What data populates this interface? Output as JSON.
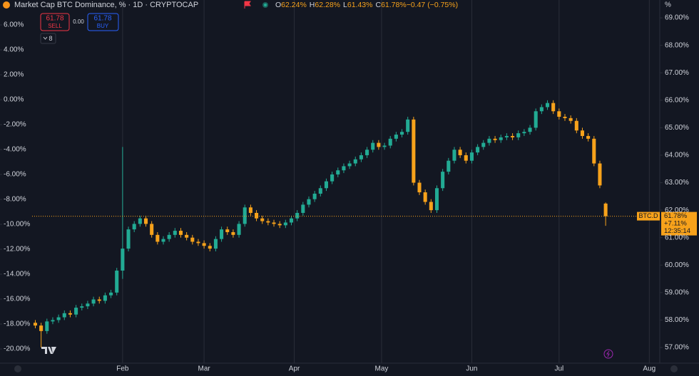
{
  "chart_data": {
    "type": "candlestick",
    "title": "Market Cap BTC Dominance, % · 1D · CRYPTOCAP",
    "ohlc_legend": [
      {
        "label": "O",
        "value": "62.24%"
      },
      {
        "label": "H",
        "value": "62.28%"
      },
      {
        "label": "L",
        "value": "61.43%"
      },
      {
        "label": "C",
        "value": "61.78%"
      },
      {
        "label": "",
        "value": "−0.47 (−0.75%)"
      }
    ],
    "sell": {
      "price": "61.78",
      "label": "SELL"
    },
    "spread": "0.00",
    "buy": {
      "price": "61.78",
      "label": "BUY"
    },
    "indicator_count": "8",
    "right_axis_unit": "%",
    "symbol_label": "BTC.D",
    "last_price_label": [
      "61.78%",
      "+7.11%",
      "12:35:14"
    ],
    "up_color": "#22ab94",
    "down_color": "#f7a21b",
    "x": [
      2,
      4,
      6,
      8,
      10,
      12,
      14,
      16,
      18,
      20,
      22,
      24,
      26,
      28,
      30,
      32,
      34,
      36,
      38,
      40,
      42,
      44,
      46,
      48,
      50,
      52,
      54,
      56,
      58,
      60,
      62,
      64,
      66,
      68,
      70,
      72,
      74,
      76,
      78,
      80,
      82,
      84,
      86,
      88,
      90,
      92,
      94,
      96,
      98,
      100,
      102,
      104,
      106,
      108,
      110,
      112,
      114,
      116,
      118,
      120,
      122,
      124,
      126,
      128,
      130,
      132,
      134,
      136,
      138,
      140,
      142,
      144,
      146,
      148,
      150,
      152,
      154,
      156,
      158,
      160,
      162,
      164,
      166,
      168,
      170,
      172,
      174,
      176,
      178,
      180,
      182,
      184,
      186,
      188,
      190,
      192,
      194,
      196,
      198
    ],
    "open": [
      57.9,
      57.8,
      57.6,
      57.95,
      58.0,
      58.1,
      58.25,
      58.2,
      58.45,
      58.5,
      58.6,
      58.75,
      58.7,
      58.9,
      59.0,
      59.8,
      60.6,
      61.3,
      61.5,
      61.7,
      61.5,
      61.1,
      60.85,
      60.95,
      61.1,
      61.25,
      61.1,
      61.0,
      60.85,
      60.8,
      60.7,
      60.6,
      60.95,
      61.3,
      61.2,
      61.1,
      61.5,
      62.1,
      61.9,
      61.7,
      61.6,
      61.55,
      61.5,
      61.45,
      61.55,
      61.7,
      61.9,
      62.2,
      62.4,
      62.6,
      62.8,
      63.05,
      63.3,
      63.45,
      63.6,
      63.7,
      63.85,
      64.0,
      64.2,
      64.45,
      64.3,
      64.35,
      64.6,
      64.75,
      64.85,
      65.3,
      63.0,
      62.65,
      62.3,
      62.0,
      62.8,
      63.4,
      63.8,
      64.2,
      64.0,
      63.8,
      64.1,
      64.3,
      64.45,
      64.6,
      64.55,
      64.65,
      64.7,
      64.65,
      64.8,
      64.85,
      65.0,
      65.6,
      65.75,
      65.9,
      65.6,
      65.4,
      65.35,
      65.25,
      64.9,
      64.7,
      64.6,
      63.7,
      62.24
    ],
    "high": [
      58.0,
      57.9,
      58.05,
      58.1,
      58.2,
      58.35,
      58.35,
      58.55,
      58.6,
      58.7,
      58.85,
      58.85,
      59.0,
      59.1,
      59.9,
      64.3,
      61.4,
      61.6,
      61.8,
      61.8,
      61.6,
      61.2,
      61.05,
      61.2,
      61.35,
      61.35,
      61.2,
      61.1,
      60.95,
      60.9,
      60.8,
      61.05,
      61.4,
      61.4,
      61.3,
      61.6,
      62.2,
      62.2,
      62.0,
      61.8,
      61.7,
      61.65,
      61.6,
      61.65,
      61.8,
      62.0,
      62.3,
      62.5,
      62.7,
      62.9,
      63.15,
      63.4,
      63.55,
      63.7,
      63.8,
      63.95,
      64.1,
      64.3,
      64.55,
      64.55,
      64.45,
      64.7,
      64.85,
      64.95,
      65.4,
      65.4,
      63.1,
      62.75,
      62.4,
      62.9,
      63.5,
      63.9,
      64.3,
      64.3,
      64.1,
      64.2,
      64.4,
      64.55,
      64.7,
      64.7,
      64.75,
      64.8,
      64.8,
      64.9,
      64.95,
      65.1,
      65.7,
      65.85,
      66.0,
      66.0,
      65.7,
      65.5,
      65.45,
      65.35,
      65.0,
      64.8,
      64.7,
      63.8,
      62.28
    ],
    "low": [
      57.7,
      57.0,
      57.5,
      57.85,
      57.9,
      58.0,
      58.1,
      58.1,
      58.35,
      58.4,
      58.5,
      58.6,
      58.6,
      58.8,
      58.9,
      59.5,
      60.5,
      61.2,
      61.4,
      61.4,
      61.0,
      60.75,
      60.75,
      60.85,
      61.0,
      61.0,
      60.9,
      60.75,
      60.7,
      60.6,
      60.5,
      60.5,
      60.85,
      61.1,
      61.0,
      61.0,
      61.4,
      61.8,
      61.6,
      61.5,
      61.45,
      61.4,
      61.35,
      61.35,
      61.45,
      61.6,
      61.8,
      62.1,
      62.3,
      62.5,
      62.7,
      62.95,
      63.2,
      63.35,
      63.5,
      63.6,
      63.75,
      63.9,
      64.1,
      64.2,
      64.2,
      64.25,
      64.5,
      64.65,
      64.75,
      62.9,
      62.55,
      62.2,
      61.9,
      61.9,
      62.7,
      63.3,
      63.7,
      63.9,
      63.7,
      63.7,
      64.0,
      64.2,
      64.35,
      64.45,
      64.45,
      64.55,
      64.55,
      64.55,
      64.7,
      64.75,
      64.9,
      65.5,
      65.65,
      65.5,
      65.3,
      65.25,
      65.15,
      64.8,
      64.6,
      64.5,
      63.6,
      62.8,
      61.43
    ],
    "close": [
      57.8,
      57.6,
      57.95,
      58.0,
      58.1,
      58.25,
      58.2,
      58.45,
      58.5,
      58.6,
      58.75,
      58.7,
      58.9,
      59.0,
      59.8,
      60.6,
      61.3,
      61.5,
      61.7,
      61.5,
      61.1,
      60.85,
      60.95,
      61.1,
      61.25,
      61.1,
      61.0,
      60.85,
      60.8,
      60.7,
      60.6,
      60.95,
      61.3,
      61.2,
      61.1,
      61.5,
      62.1,
      61.9,
      61.7,
      61.6,
      61.55,
      61.5,
      61.45,
      61.55,
      61.7,
      61.9,
      62.2,
      62.4,
      62.6,
      62.8,
      63.05,
      63.3,
      63.45,
      63.6,
      63.7,
      63.85,
      64.0,
      64.2,
      64.45,
      64.3,
      64.35,
      64.6,
      64.75,
      64.85,
      65.3,
      63.0,
      62.65,
      62.3,
      62.0,
      62.8,
      63.4,
      63.8,
      64.2,
      64.0,
      63.8,
      64.1,
      64.3,
      64.45,
      64.6,
      64.55,
      64.65,
      64.7,
      64.65,
      64.8,
      64.85,
      65.0,
      65.6,
      65.75,
      65.9,
      65.6,
      65.4,
      65.35,
      65.25,
      64.9,
      64.7,
      64.6,
      63.7,
      62.9,
      61.78
    ],
    "xlim": [
      0.9,
      216.6
    ],
    "xticks": [
      {
        "value": 32,
        "label": "Feb"
      },
      {
        "value": 60,
        "label": "Mar"
      },
      {
        "value": 91,
        "label": "Apr"
      },
      {
        "value": 121,
        "label": "May"
      },
      {
        "value": 152,
        "label": "Jun"
      },
      {
        "value": 182,
        "label": "Jul"
      },
      {
        "value": 213,
        "label": "Aug"
      }
    ],
    "ylim": [
      56.43,
      69.65
    ],
    "yticks": [
      {
        "value": 57,
        "label": "57.00%"
      },
      {
        "value": 58,
        "label": "58.00%"
      },
      {
        "value": 59,
        "label": "59.00%"
      },
      {
        "value": 60,
        "label": "60.00%"
      },
      {
        "value": 61,
        "label": "61.00%"
      },
      {
        "value": 62,
        "label": "62.00%"
      },
      {
        "value": 63,
        "label": "63.00%"
      },
      {
        "value": 64,
        "label": "64.00%"
      },
      {
        "value": 65,
        "label": "65.00%"
      },
      {
        "value": 66,
        "label": "66.00%"
      },
      {
        "value": 67,
        "label": "67.00%"
      },
      {
        "value": 68,
        "label": "68.00%"
      },
      {
        "value": 69,
        "label": "69.00%"
      }
    ],
    "y2lim": [
      -21.14,
      8.0
    ],
    "y2ticks": [
      {
        "value": 6,
        "label": "6.00%"
      },
      {
        "value": 4,
        "label": "4.00%"
      },
      {
        "value": 2,
        "label": "2.00%"
      },
      {
        "value": 0,
        "label": "0.00%"
      },
      {
        "value": -2,
        "label": "-2.00%"
      },
      {
        "value": -4,
        "label": "-4.00%"
      },
      {
        "value": -6,
        "label": "-6.00%"
      },
      {
        "value": -8,
        "label": "-8.00%"
      },
      {
        "value": -10,
        "label": "-10.00%"
      },
      {
        "value": -12,
        "label": "-12.00%"
      },
      {
        "value": -14,
        "label": "-14.00%"
      },
      {
        "value": -16,
        "label": "-16.00%"
      },
      {
        "value": -18,
        "label": "-18.00%"
      },
      {
        "value": -20,
        "label": "-20.00%"
      }
    ]
  }
}
